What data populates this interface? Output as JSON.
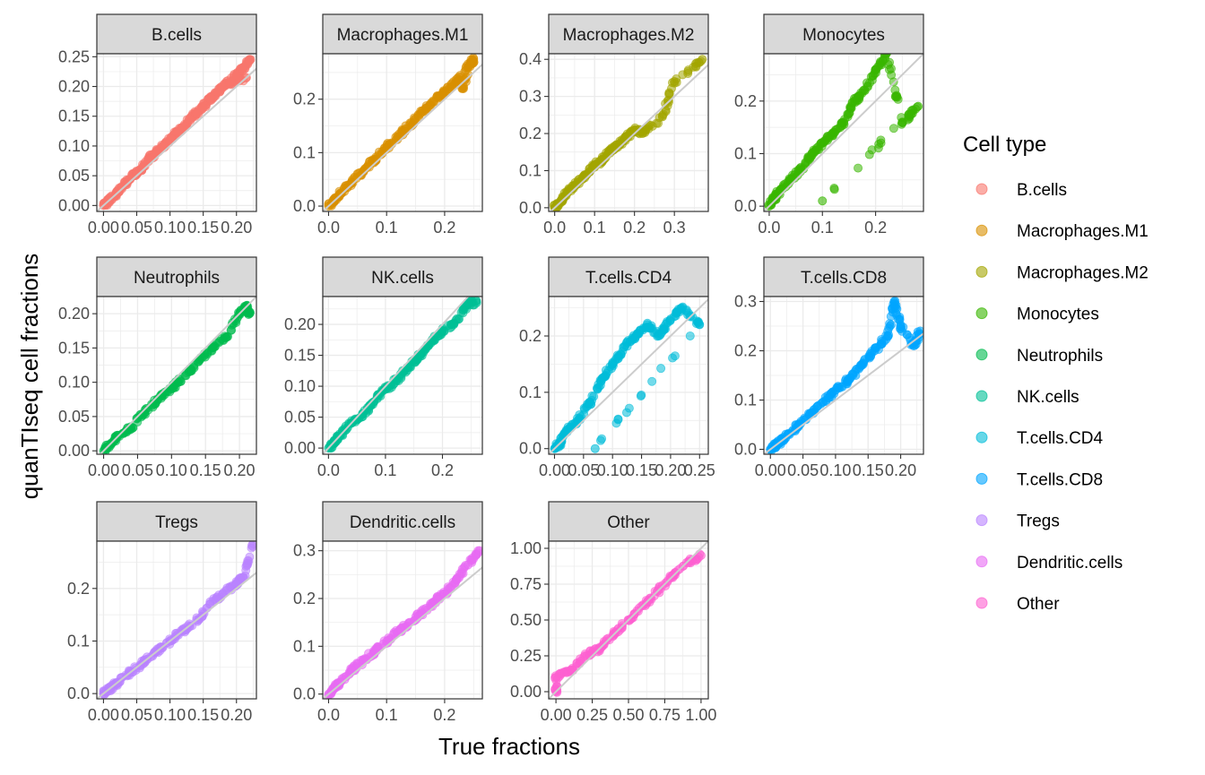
{
  "chart_data": {
    "type": "scatter",
    "xlabel": "True fractions",
    "ylabel": "quanTIseq cell fractions",
    "legend": {
      "title": "Cell type",
      "position": "right"
    },
    "grid": true,
    "reference_line": "identity (y = x)",
    "panels": [
      {
        "name": "B.cells",
        "color": "#F8766D",
        "xlim": [
          -0.01,
          0.23
        ],
        "ylim": [
          -0.01,
          0.255
        ],
        "xticks": [
          0.0,
          0.05,
          0.1,
          0.15,
          0.2
        ],
        "xtick_labels": [
          "0.00",
          "0.05",
          "0.10",
          "0.15",
          "0.20"
        ],
        "yticks": [
          0.0,
          0.05,
          0.1,
          0.15,
          0.2,
          0.25
        ],
        "ytick_labels": [
          "0.00",
          "0.05",
          "0.10",
          "0.15",
          "0.20",
          "0.25"
        ],
        "points": [
          [
            0,
            0
          ],
          [
            0.005,
            0.004
          ],
          [
            0.01,
            0.012
          ],
          [
            0.02,
            0.02
          ],
          [
            0.03,
            0.033
          ],
          [
            0.04,
            0.045
          ],
          [
            0.05,
            0.055
          ],
          [
            0.06,
            0.065
          ],
          [
            0.07,
            0.08
          ],
          [
            0.08,
            0.09
          ],
          [
            0.09,
            0.1
          ],
          [
            0.1,
            0.11
          ],
          [
            0.11,
            0.125
          ],
          [
            0.12,
            0.13
          ],
          [
            0.13,
            0.145
          ],
          [
            0.14,
            0.155
          ],
          [
            0.15,
            0.165
          ],
          [
            0.16,
            0.18
          ],
          [
            0.17,
            0.19
          ],
          [
            0.18,
            0.2
          ],
          [
            0.2,
            0.22
          ],
          [
            0.21,
            0.23
          ],
          [
            0.22,
            0.245
          ],
          [
            0.19,
            0.205
          ],
          [
            0.215,
            0.215
          ]
        ]
      },
      {
        "name": "Macrophages.M1",
        "color": "#D89000",
        "xlim": [
          -0.01,
          0.265
        ],
        "ylim": [
          -0.01,
          0.285
        ],
        "xticks": [
          0.0,
          0.1,
          0.2
        ],
        "xtick_labels": [
          "0.0",
          "0.1",
          "0.2"
        ],
        "yticks": [
          0.0,
          0.1,
          0.2
        ],
        "ytick_labels": [
          "0.0",
          "0.1",
          "0.2"
        ],
        "points": [
          [
            0,
            0
          ],
          [
            0.01,
            0.012
          ],
          [
            0.02,
            0.024
          ],
          [
            0.04,
            0.045
          ],
          [
            0.06,
            0.066
          ],
          [
            0.08,
            0.088
          ],
          [
            0.1,
            0.11
          ],
          [
            0.12,
            0.13
          ],
          [
            0.14,
            0.152
          ],
          [
            0.16,
            0.175
          ],
          [
            0.18,
            0.195
          ],
          [
            0.2,
            0.215
          ],
          [
            0.22,
            0.232
          ],
          [
            0.24,
            0.26
          ],
          [
            0.25,
            0.275
          ],
          [
            0.23,
            0.22
          ]
        ]
      },
      {
        "name": "Macrophages.M2",
        "color": "#A3A500",
        "xlim": [
          -0.015,
          0.385
        ],
        "ylim": [
          -0.01,
          0.415
        ],
        "xticks": [
          0.0,
          0.1,
          0.2,
          0.3
        ],
        "xtick_labels": [
          "0.0",
          "0.1",
          "0.2",
          "0.3"
        ],
        "yticks": [
          0.0,
          0.1,
          0.2,
          0.3,
          0.4
        ],
        "ytick_labels": [
          "0.0",
          "0.1",
          "0.2",
          "0.3",
          "0.4"
        ],
        "points": [
          [
            0,
            0
          ],
          [
            0.01,
            0.012
          ],
          [
            0.02,
            0.025
          ],
          [
            0.04,
            0.05
          ],
          [
            0.06,
            0.07
          ],
          [
            0.08,
            0.09
          ],
          [
            0.1,
            0.115
          ],
          [
            0.12,
            0.13
          ],
          [
            0.14,
            0.155
          ],
          [
            0.16,
            0.17
          ],
          [
            0.18,
            0.19
          ],
          [
            0.2,
            0.21
          ],
          [
            0.22,
            0.2
          ],
          [
            0.27,
            0.245
          ],
          [
            0.3,
            0.34
          ],
          [
            0.37,
            0.4
          ]
        ]
      },
      {
        "name": "Monocytes",
        "color": "#39B600",
        "xlim": [
          -0.01,
          0.29
        ],
        "ylim": [
          -0.01,
          0.29
        ],
        "xticks": [
          0.0,
          0.1,
          0.2
        ],
        "xtick_labels": [
          "0.0",
          "0.1",
          "0.2"
        ],
        "yticks": [
          0.0,
          0.1,
          0.2
        ],
        "ytick_labels": [
          "0.0",
          "0.1",
          "0.2"
        ],
        "points": [
          [
            0,
            0
          ],
          [
            0.01,
            0.015
          ],
          [
            0.02,
            0.03
          ],
          [
            0.04,
            0.05
          ],
          [
            0.06,
            0.07
          ],
          [
            0.08,
            0.1
          ],
          [
            0.1,
            0.12
          ],
          [
            0.12,
            0.14
          ],
          [
            0.14,
            0.16
          ],
          [
            0.16,
            0.2
          ],
          [
            0.18,
            0.22
          ],
          [
            0.2,
            0.26
          ],
          [
            0.22,
            0.29
          ],
          [
            0.25,
            0.16
          ],
          [
            0.28,
            0.19
          ],
          [
            0.1,
            0.01
          ]
        ]
      },
      {
        "name": "Neutrophils",
        "color": "#00BB4E",
        "xlim": [
          -0.01,
          0.225
        ],
        "ylim": [
          -0.005,
          0.225
        ],
        "xticks": [
          0.0,
          0.05,
          0.1,
          0.15,
          0.2
        ],
        "xtick_labels": [
          "0.00",
          "0.05",
          "0.10",
          "0.15",
          "0.20"
        ],
        "yticks": [
          0.0,
          0.05,
          0.1,
          0.15,
          0.2
        ],
        "ytick_labels": [
          "0.00",
          "0.05",
          "0.10",
          "0.15",
          "0.20"
        ],
        "points": [
          [
            0,
            0
          ],
          [
            0.01,
            0.01
          ],
          [
            0.02,
            0.02
          ],
          [
            0.04,
            0.035
          ],
          [
            0.06,
            0.055
          ],
          [
            0.08,
            0.075
          ],
          [
            0.1,
            0.09
          ],
          [
            0.12,
            0.11
          ],
          [
            0.14,
            0.13
          ],
          [
            0.16,
            0.15
          ],
          [
            0.18,
            0.165
          ],
          [
            0.2,
            0.2
          ],
          [
            0.21,
            0.21
          ],
          [
            0.215,
            0.2
          ]
        ]
      },
      {
        "name": "NK.cells",
        "color": "#00BF96",
        "xlim": [
          -0.01,
          0.27
        ],
        "ylim": [
          -0.01,
          0.245
        ],
        "xticks": [
          0.0,
          0.1,
          0.2
        ],
        "xtick_labels": [
          "0.0",
          "0.1",
          "0.2"
        ],
        "yticks": [
          0.0,
          0.05,
          0.1,
          0.15,
          0.2
        ],
        "ytick_labels": [
          "0.00",
          "0.05",
          "0.10",
          "0.15",
          "0.20"
        ],
        "points": [
          [
            0,
            0
          ],
          [
            0.01,
            0.01
          ],
          [
            0.02,
            0.02
          ],
          [
            0.04,
            0.04
          ],
          [
            0.06,
            0.055
          ],
          [
            0.08,
            0.075
          ],
          [
            0.1,
            0.095
          ],
          [
            0.12,
            0.11
          ],
          [
            0.14,
            0.13
          ],
          [
            0.16,
            0.15
          ],
          [
            0.18,
            0.17
          ],
          [
            0.2,
            0.19
          ],
          [
            0.22,
            0.2
          ],
          [
            0.245,
            0.235
          ],
          [
            0.26,
            0.235
          ]
        ]
      },
      {
        "name": "T.cells.CD4",
        "color": "#00BCD8",
        "xlim": [
          -0.01,
          0.265
        ],
        "ylim": [
          -0.01,
          0.27
        ],
        "xticks": [
          0.0,
          0.05,
          0.1,
          0.15,
          0.2,
          0.25
        ],
        "xtick_labels": [
          "0.00",
          "0.05",
          "0.10",
          "0.15",
          "0.20",
          "0.25"
        ],
        "yticks": [
          0.0,
          0.1,
          0.2
        ],
        "ytick_labels": [
          "0.0",
          "0.1",
          "0.2"
        ],
        "points": [
          [
            0,
            0
          ],
          [
            0.01,
            0.01
          ],
          [
            0.02,
            0.03
          ],
          [
            0.04,
            0.05
          ],
          [
            0.06,
            0.08
          ],
          [
            0.08,
            0.12
          ],
          [
            0.1,
            0.15
          ],
          [
            0.12,
            0.18
          ],
          [
            0.14,
            0.2
          ],
          [
            0.16,
            0.22
          ],
          [
            0.18,
            0.2
          ],
          [
            0.2,
            0.23
          ],
          [
            0.22,
            0.25
          ],
          [
            0.25,
            0.22
          ],
          [
            0.07,
            0.0
          ]
        ]
      },
      {
        "name": "T.cells.CD8",
        "color": "#00A5FF",
        "xlim": [
          -0.01,
          0.235
        ],
        "ylim": [
          -0.01,
          0.31
        ],
        "xticks": [
          0.0,
          0.05,
          0.1,
          0.15,
          0.2
        ],
        "xtick_labels": [
          "0.00",
          "0.05",
          "0.10",
          "0.15",
          "0.20"
        ],
        "yticks": [
          0.0,
          0.1,
          0.2,
          0.3
        ],
        "ytick_labels": [
          "0.0",
          "0.1",
          "0.2",
          "0.3"
        ],
        "points": [
          [
            0,
            0
          ],
          [
            0.01,
            0.01
          ],
          [
            0.02,
            0.02
          ],
          [
            0.04,
            0.045
          ],
          [
            0.06,
            0.07
          ],
          [
            0.08,
            0.095
          ],
          [
            0.1,
            0.12
          ],
          [
            0.12,
            0.14
          ],
          [
            0.14,
            0.17
          ],
          [
            0.16,
            0.2
          ],
          [
            0.18,
            0.23
          ],
          [
            0.19,
            0.3
          ],
          [
            0.2,
            0.25
          ],
          [
            0.22,
            0.21
          ],
          [
            0.23,
            0.24
          ]
        ]
      },
      {
        "name": "Tregs",
        "color": "#B983FF",
        "xlim": [
          -0.01,
          0.23
        ],
        "ylim": [
          -0.01,
          0.29
        ],
        "xticks": [
          0.0,
          0.05,
          0.1,
          0.15,
          0.2
        ],
        "xtick_labels": [
          "0.00",
          "0.05",
          "0.10",
          "0.15",
          "0.20"
        ],
        "yticks": [
          0.0,
          0.1,
          0.2
        ],
        "ytick_labels": [
          "0.0",
          "0.1",
          "0.2"
        ],
        "points": [
          [
            0,
            0
          ],
          [
            0.01,
            0.01
          ],
          [
            0.02,
            0.02
          ],
          [
            0.04,
            0.04
          ],
          [
            0.06,
            0.06
          ],
          [
            0.08,
            0.08
          ],
          [
            0.1,
            0.1
          ],
          [
            0.12,
            0.12
          ],
          [
            0.14,
            0.14
          ],
          [
            0.16,
            0.17
          ],
          [
            0.18,
            0.19
          ],
          [
            0.2,
            0.21
          ],
          [
            0.21,
            0.22
          ],
          [
            0.225,
            0.285
          ]
        ]
      },
      {
        "name": "Dendritic.cells",
        "color": "#E76BF3",
        "xlim": [
          -0.01,
          0.265
        ],
        "ylim": [
          -0.01,
          0.32
        ],
        "xticks": [
          0.0,
          0.1,
          0.2
        ],
        "xtick_labels": [
          "0.0",
          "0.1",
          "0.2"
        ],
        "yticks": [
          0.0,
          0.1,
          0.2,
          0.3
        ],
        "ytick_labels": [
          "0.0",
          "0.1",
          "0.2",
          "0.3"
        ],
        "points": [
          [
            0,
            0
          ],
          [
            0.01,
            0.012
          ],
          [
            0.02,
            0.025
          ],
          [
            0.04,
            0.05
          ],
          [
            0.06,
            0.07
          ],
          [
            0.08,
            0.09
          ],
          [
            0.1,
            0.11
          ],
          [
            0.12,
            0.13
          ],
          [
            0.14,
            0.15
          ],
          [
            0.16,
            0.17
          ],
          [
            0.18,
            0.19
          ],
          [
            0.2,
            0.21
          ],
          [
            0.22,
            0.24
          ],
          [
            0.24,
            0.27
          ],
          [
            0.26,
            0.3
          ]
        ]
      },
      {
        "name": "Other",
        "color": "#FD61D1",
        "xlim": [
          -0.05,
          1.05
        ],
        "ylim": [
          -0.05,
          1.05
        ],
        "xticks": [
          0.0,
          0.25,
          0.5,
          0.75,
          1.0
        ],
        "xtick_labels": [
          "0.00",
          "0.25",
          "0.50",
          "0.75",
          "1.00"
        ],
        "yticks": [
          0.0,
          0.25,
          0.5,
          0.75,
          1.0
        ],
        "ytick_labels": [
          "0.00",
          "0.25",
          "0.50",
          "0.75",
          "1.00"
        ],
        "points": [
          [
            0,
            0.0
          ],
          [
            0,
            0.1
          ],
          [
            0.1,
            0.15
          ],
          [
            0.2,
            0.25
          ],
          [
            0.3,
            0.3
          ],
          [
            0.4,
            0.4
          ],
          [
            0.5,
            0.5
          ],
          [
            0.6,
            0.6
          ],
          [
            0.7,
            0.7
          ],
          [
            0.8,
            0.8
          ],
          [
            0.9,
            0.9
          ],
          [
            1.0,
            0.95
          ]
        ]
      }
    ]
  }
}
